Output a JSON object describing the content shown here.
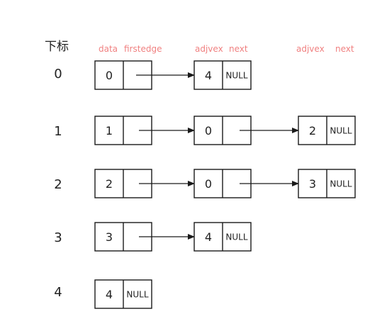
{
  "header": {
    "index_label": "下标",
    "vertex_labels": [
      "data",
      "firstedge"
    ],
    "edge_labels": [
      "adjvex",
      "next"
    ],
    "edge_labels_2": [
      "adjvex",
      "next"
    ],
    "label_color": "#f08080"
  },
  "null_text": "NULL",
  "rows": [
    {
      "index": "0",
      "data": "0",
      "firstedge": "",
      "edges": [
        {
          "adjvex": "4",
          "next": "NULL"
        }
      ]
    },
    {
      "index": "1",
      "data": "1",
      "firstedge": "",
      "edges": [
        {
          "adjvex": "0",
          "next": ""
        },
        {
          "adjvex": "2",
          "next": "NULL"
        }
      ]
    },
    {
      "index": "2",
      "data": "2",
      "firstedge": "",
      "edges": [
        {
          "adjvex": "0",
          "next": ""
        },
        {
          "adjvex": "3",
          "next": "NULL"
        }
      ]
    },
    {
      "index": "3",
      "data": "3",
      "firstedge": "",
      "edges": [
        {
          "adjvex": "4",
          "next": "NULL"
        }
      ]
    },
    {
      "index": "4",
      "data": "4",
      "firstedge": "NULL",
      "edges": []
    }
  ]
}
